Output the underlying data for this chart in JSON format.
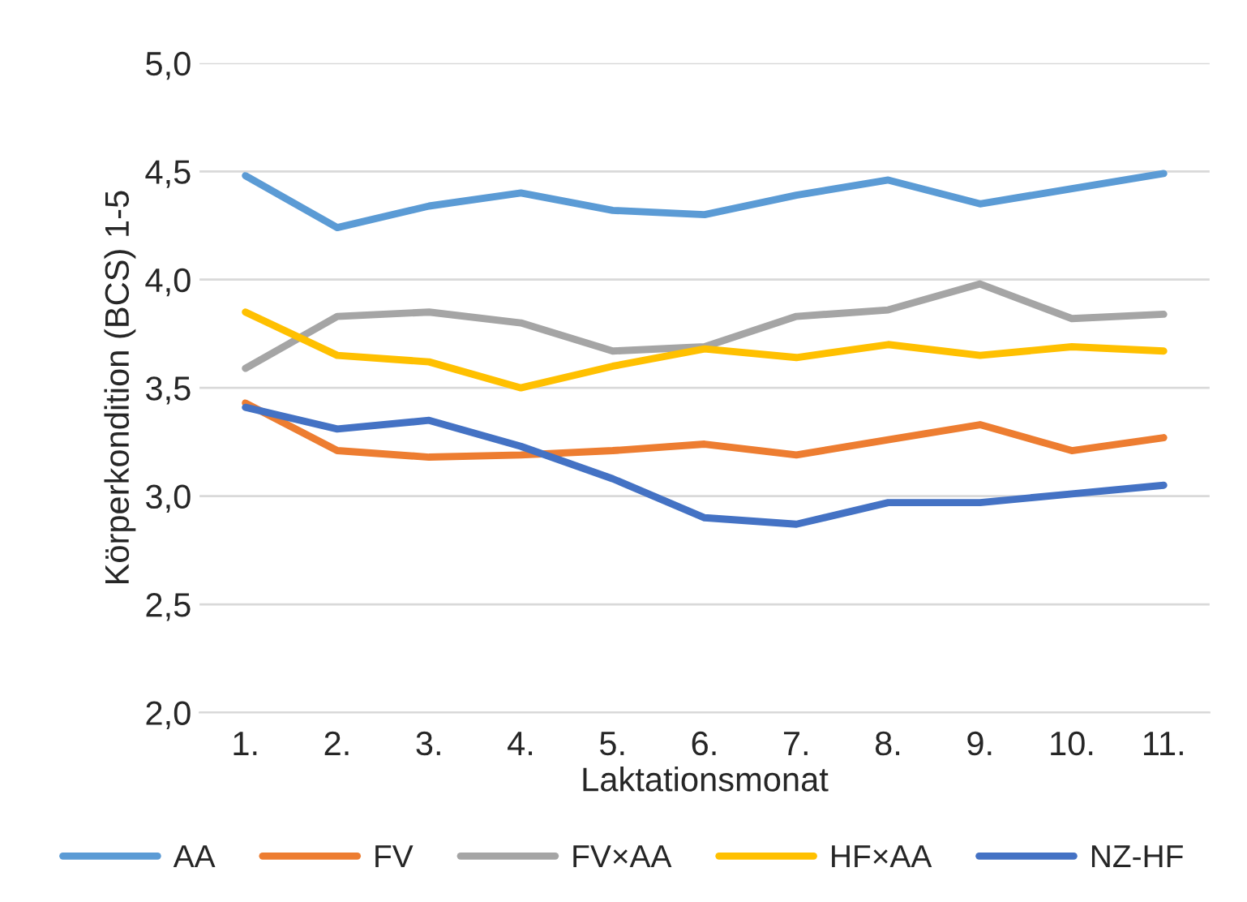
{
  "chart_data": {
    "type": "line",
    "xlabel": "Laktationsmonat",
    "ylabel": "Körperkondition (BCS) 1-5",
    "categories": [
      "1.",
      "2.",
      "3.",
      "4.",
      "5.",
      "6.",
      "7.",
      "8.",
      "9.",
      "10.",
      "11."
    ],
    "series": [
      {
        "name": "AA",
        "color": "#5b9bd5",
        "values": [
          4.48,
          4.24,
          4.34,
          4.4,
          4.32,
          4.3,
          4.39,
          4.46,
          4.35,
          4.42,
          4.49
        ]
      },
      {
        "name": "FV",
        "color": "#ed7d31",
        "values": [
          3.43,
          3.21,
          3.18,
          3.19,
          3.21,
          3.24,
          3.19,
          3.26,
          3.33,
          3.21,
          3.27
        ]
      },
      {
        "name": "FV×AA",
        "color": "#a5a5a5",
        "values": [
          3.59,
          3.83,
          3.85,
          3.8,
          3.67,
          3.69,
          3.83,
          3.86,
          3.98,
          3.82,
          3.84
        ]
      },
      {
        "name": "HF×AA",
        "color": "#ffc000",
        "values": [
          3.85,
          3.65,
          3.62,
          3.5,
          3.6,
          3.68,
          3.64,
          3.7,
          3.65,
          3.69,
          3.67
        ]
      },
      {
        "name": "NZ-HF",
        "color": "#4472c4",
        "values": [
          3.41,
          3.31,
          3.35,
          3.23,
          3.08,
          2.9,
          2.87,
          2.97,
          2.97,
          3.01,
          3.05
        ]
      }
    ],
    "ylim": [
      2.0,
      5.0
    ],
    "yticks": [
      {
        "value": 2.0,
        "label": "2,0"
      },
      {
        "value": 2.5,
        "label": "2,5"
      },
      {
        "value": 3.0,
        "label": "3,0"
      },
      {
        "value": 3.5,
        "label": "3,5"
      },
      {
        "value": 4.0,
        "label": "4,0"
      },
      {
        "value": 4.5,
        "label": "4,5"
      },
      {
        "value": 5.0,
        "label": "5,0"
      }
    ],
    "grid": "y",
    "legend": "bottom",
    "marker": "none",
    "line_style": "solid"
  }
}
